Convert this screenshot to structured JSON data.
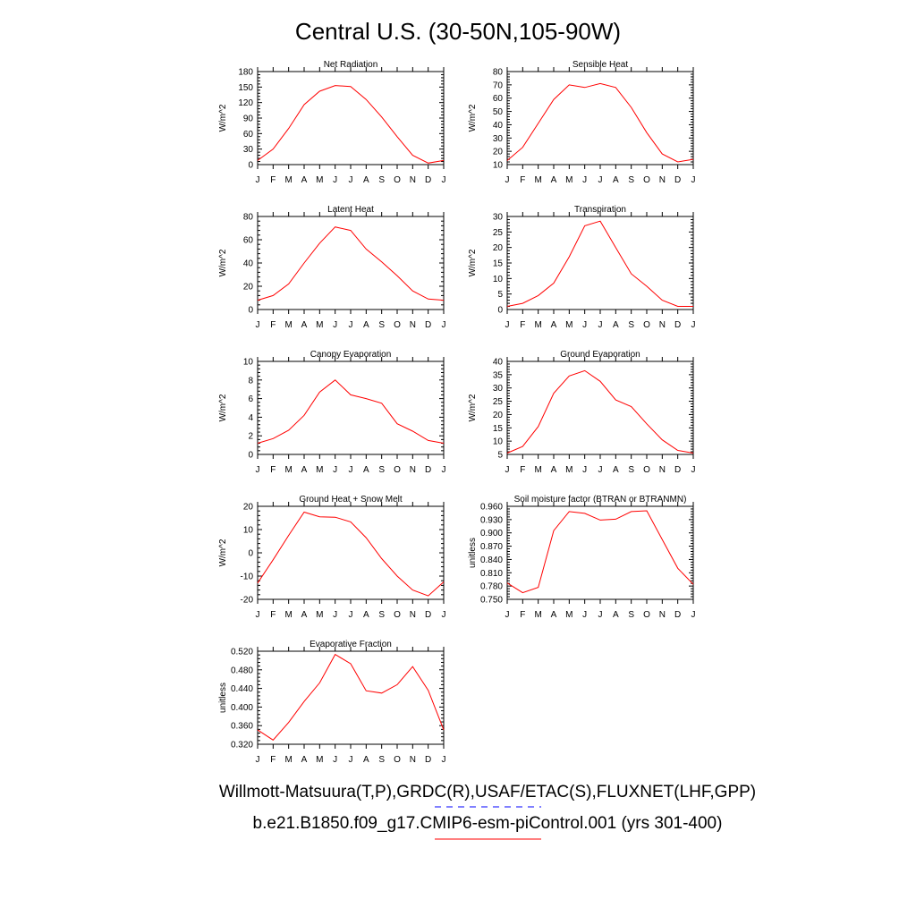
{
  "title": "Central U.S. (30-50N,105-90W)",
  "colors": {
    "model": "#ff0000",
    "obs": "#0000ff",
    "axis": "#000000"
  },
  "legend": [
    {
      "label": "Willmott-Matsuura(T,P),GRDC(R),USAF/ETAC(S),FLUXNET(LHF,GPP)",
      "color": "#0000ff",
      "style": "dashed"
    },
    {
      "label": "b.e21.B1850.f09_g17.CMIP6-esm-piControl.001 (yrs 301-400)",
      "color": "#ff0000",
      "style": "solid"
    }
  ],
  "chart_data": [
    {
      "type": "line",
      "title": "Net Radiation",
      "ylabel": "W/m^2",
      "ylim": [
        0,
        180
      ],
      "yticks": [
        "0",
        "30",
        "60",
        "90",
        "120",
        "150",
        "180"
      ],
      "categories": [
        "J",
        "F",
        "M",
        "A",
        "M",
        "J",
        "J",
        "A",
        "S",
        "O",
        "N",
        "D",
        "J"
      ],
      "series": [
        {
          "values": [
            8,
            30,
            70,
            116,
            142,
            153,
            151,
            126,
            92,
            54,
            18,
            3,
            8
          ]
        }
      ]
    },
    {
      "type": "line",
      "title": "Sensible Heat",
      "ylabel": "W/m^2",
      "ylim": [
        10,
        80
      ],
      "yticks": [
        "10",
        "20",
        "30",
        "40",
        "50",
        "60",
        "70",
        "80"
      ],
      "categories": [
        "J",
        "F",
        "M",
        "A",
        "M",
        "J",
        "J",
        "A",
        "S",
        "O",
        "N",
        "D",
        "J"
      ],
      "series": [
        {
          "values": [
            13,
            23,
            41,
            59,
            70,
            68,
            71,
            68,
            53,
            34,
            18,
            12,
            14
          ]
        }
      ]
    },
    {
      "type": "line",
      "title": "Latent Heat",
      "ylabel": "W/m^2",
      "ylim": [
        0,
        80
      ],
      "yticks": [
        "0",
        "20",
        "40",
        "60",
        "80"
      ],
      "categories": [
        "J",
        "F",
        "M",
        "A",
        "M",
        "J",
        "J",
        "A",
        "S",
        "O",
        "N",
        "D",
        "J"
      ],
      "series": [
        {
          "values": [
            8,
            12,
            22,
            40,
            57,
            71,
            68,
            52,
            41,
            29,
            16,
            9,
            8
          ]
        }
      ]
    },
    {
      "type": "line",
      "title": "Transpiration",
      "ylabel": "W/m^2",
      "ylim": [
        0,
        30
      ],
      "yticks": [
        "0",
        "5",
        "10",
        "15",
        "20",
        "25",
        "30"
      ],
      "categories": [
        "J",
        "F",
        "M",
        "A",
        "M",
        "J",
        "J",
        "A",
        "S",
        "O",
        "N",
        "D",
        "J"
      ],
      "series": [
        {
          "values": [
            1,
            2,
            4.5,
            8.5,
            17,
            27,
            28.5,
            20,
            11.5,
            7.5,
            3,
            1,
            1
          ]
        }
      ]
    },
    {
      "type": "line",
      "title": "Canopy Evaporation",
      "ylabel": "W/m^2",
      "ylim": [
        0,
        10
      ],
      "yticks": [
        "0",
        "2",
        "4",
        "6",
        "8",
        "10"
      ],
      "categories": [
        "J",
        "F",
        "M",
        "A",
        "M",
        "J",
        "J",
        "A",
        "S",
        "O",
        "N",
        "D",
        "J"
      ],
      "series": [
        {
          "values": [
            1.2,
            1.7,
            2.6,
            4.2,
            6.7,
            8.0,
            6.4,
            6.0,
            5.5,
            3.3,
            2.5,
            1.5,
            1.2
          ]
        }
      ]
    },
    {
      "type": "line",
      "title": "Ground Evaporation",
      "ylabel": "W/m^2",
      "ylim": [
        5,
        40
      ],
      "yticks": [
        "5",
        "10",
        "15",
        "20",
        "25",
        "30",
        "35",
        "40"
      ],
      "categories": [
        "J",
        "F",
        "M",
        "A",
        "M",
        "J",
        "J",
        "A",
        "S",
        "O",
        "N",
        "D",
        "J"
      ],
      "series": [
        {
          "values": [
            5.5,
            8,
            15.5,
            28,
            34.5,
            36.5,
            32.5,
            25.5,
            23,
            16.5,
            10.5,
            6.5,
            5.5
          ]
        }
      ]
    },
    {
      "type": "line",
      "title": "Ground Heat + Snow Melt",
      "ylabel": "W/m^2",
      "ylim": [
        -20,
        20
      ],
      "yticks": [
        "-20",
        "-10",
        "0",
        "10",
        "20"
      ],
      "categories": [
        "J",
        "F",
        "M",
        "A",
        "M",
        "J",
        "J",
        "A",
        "S",
        "O",
        "N",
        "D",
        "J"
      ],
      "series": [
        {
          "values": [
            -13,
            -3,
            7.5,
            17.5,
            15.5,
            15.3,
            13.3,
            6.5,
            -2.5,
            -10,
            -16,
            -18.5,
            -12.5
          ]
        }
      ]
    },
    {
      "type": "line",
      "title": "Soil moisture factor (BTRAN or BTRANMN)",
      "ylabel": "unitless",
      "ylim": [
        0.75,
        0.96
      ],
      "yticks": [
        "0.750",
        "0.780",
        "0.810",
        "0.840",
        "0.870",
        "0.900",
        "0.930",
        "0.960"
      ],
      "categories": [
        "J",
        "F",
        "M",
        "A",
        "M",
        "J",
        "J",
        "A",
        "S",
        "O",
        "N",
        "D",
        "J"
      ],
      "series": [
        {
          "values": [
            0.787,
            0.765,
            0.777,
            0.905,
            0.948,
            0.944,
            0.929,
            0.931,
            0.948,
            0.95,
            0.885,
            0.82,
            0.784
          ]
        }
      ]
    },
    {
      "type": "line",
      "title": "Evaporative Fraction",
      "ylabel": "unitless",
      "ylim": [
        0.32,
        0.52
      ],
      "yticks": [
        "0.320",
        "0.360",
        "0.400",
        "0.440",
        "0.480",
        "0.520"
      ],
      "categories": [
        "J",
        "F",
        "M",
        "A",
        "M",
        "J",
        "J",
        "A",
        "S",
        "O",
        "N",
        "D",
        "J"
      ],
      "series": [
        {
          "values": [
            0.351,
            0.329,
            0.367,
            0.412,
            0.452,
            0.513,
            0.493,
            0.435,
            0.43,
            0.448,
            0.487,
            0.436,
            0.351
          ]
        }
      ]
    }
  ]
}
